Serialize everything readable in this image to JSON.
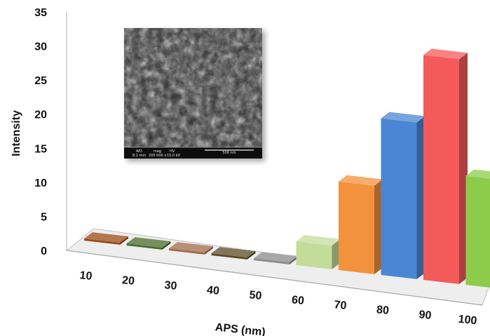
{
  "chart_data": {
    "type": "bar",
    "categories": [
      "10",
      "20",
      "30",
      "40",
      "50",
      "60",
      "70",
      "80",
      "90",
      "100"
    ],
    "values": [
      0.3,
      0.3,
      0.3,
      0.3,
      0.3,
      3.5,
      13,
      23,
      33,
      16
    ],
    "colors": [
      "#9a4a12",
      "#4a6a2a",
      "#a06a4a",
      "#5a4a20",
      "#8a8a8a",
      "#c4dc9a",
      "#f2923c",
      "#4a86d4",
      "#f45a5a",
      "#8ccc4a"
    ],
    "xlabel": "APS (nm)",
    "ylabel": "Intensity",
    "ylim": [
      0,
      35
    ],
    "yticks": [
      "0",
      "5",
      "10",
      "15",
      "20",
      "25",
      "30",
      "35"
    ],
    "grid": false,
    "legend": "none",
    "style": "3d-perspective",
    "inset": {
      "type": "SEM micrograph",
      "labels": [
        "WD",
        "mag",
        "HV"
      ],
      "values": [
        "8.1 mm",
        "200 000 x",
        "15.0 kV"
      ],
      "scale_bar": "500 nm"
    }
  }
}
